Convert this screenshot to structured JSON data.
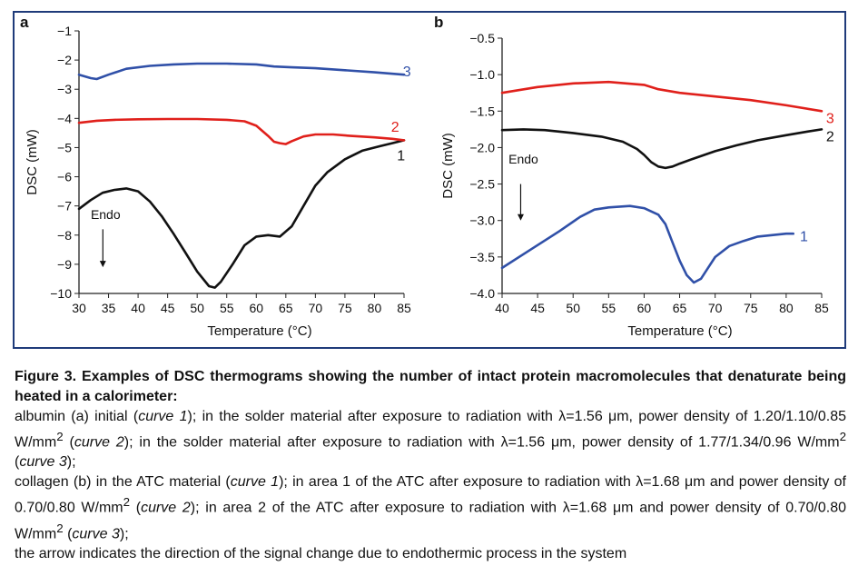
{
  "colors": {
    "frame": "#1f3b7a",
    "black": "#111111",
    "red": "#e0201b",
    "blue": "#3050a8"
  },
  "chart_data": [
    {
      "type": "line",
      "panel_label": "a",
      "xlabel": "Temperature (°C)",
      "ylabel": "DSC (mW)",
      "xlim": [
        30,
        85
      ],
      "ylim": [
        -10,
        -1
      ],
      "xticks": [
        30,
        35,
        40,
        45,
        50,
        55,
        60,
        65,
        70,
        75,
        80,
        85
      ],
      "xtick_labels": [
        "30",
        "35",
        "40",
        "45",
        "50",
        "55",
        "60",
        "65",
        "70",
        "75",
        "80",
        "85"
      ],
      "yticks": [
        -1,
        -2,
        -3,
        -4,
        -5,
        -6,
        -7,
        -8,
        -9,
        -10
      ],
      "ytick_labels": [
        "−1",
        "−2",
        "−3",
        "−4",
        "−5",
        "−6",
        "−7",
        "−8",
        "−9",
        "−10"
      ],
      "annotation": {
        "text": "Endo",
        "x": 34.5,
        "y": -7.45,
        "arrow_from": -7.8,
        "arrow_to": -9.1
      },
      "series": [
        {
          "name": "1",
          "color": "black",
          "x": [
            30,
            32,
            34,
            36,
            38,
            40,
            42,
            44,
            46,
            48,
            50,
            52,
            53,
            54,
            56,
            58,
            60,
            62,
            64,
            66,
            68,
            70,
            72,
            75,
            78,
            81,
            83,
            85
          ],
          "y": [
            -7.1,
            -6.8,
            -6.55,
            -6.45,
            -6.4,
            -6.5,
            -6.85,
            -7.35,
            -7.95,
            -8.6,
            -9.25,
            -9.75,
            -9.8,
            -9.6,
            -9.0,
            -8.35,
            -8.05,
            -8.0,
            -8.05,
            -7.7,
            -7.0,
            -6.3,
            -5.85,
            -5.4,
            -5.1,
            -4.95,
            -4.85,
            -4.75
          ],
          "label_pos": {
            "x": 84.5,
            "y": -5.28
          }
        },
        {
          "name": "2",
          "color": "red",
          "x": [
            30,
            33,
            36,
            40,
            45,
            50,
            55,
            58,
            60,
            62,
            63,
            64,
            65,
            66,
            68,
            70,
            73,
            76,
            80,
            83,
            85
          ],
          "y": [
            -4.15,
            -4.08,
            -4.05,
            -4.03,
            -4.02,
            -4.02,
            -4.05,
            -4.1,
            -4.25,
            -4.6,
            -4.8,
            -4.85,
            -4.88,
            -4.78,
            -4.62,
            -4.55,
            -4.55,
            -4.6,
            -4.65,
            -4.7,
            -4.75
          ],
          "label_pos": {
            "x": 83.5,
            "y": -4.3
          }
        },
        {
          "name": "3",
          "color": "blue",
          "x": [
            30,
            32,
            33,
            35,
            38,
            42,
            46,
            50,
            55,
            60,
            63,
            66,
            70,
            75,
            80,
            85
          ],
          "y": [
            -2.5,
            -2.62,
            -2.65,
            -2.5,
            -2.3,
            -2.2,
            -2.15,
            -2.12,
            -2.12,
            -2.15,
            -2.22,
            -2.25,
            -2.28,
            -2.35,
            -2.42,
            -2.5
          ],
          "label_pos": {
            "x": 85.5,
            "y": -2.4
          }
        }
      ]
    },
    {
      "type": "line",
      "panel_label": "b",
      "xlabel": "Temperature (°C)",
      "ylabel": "DSC (mW)",
      "xlim": [
        40,
        85
      ],
      "ylim": [
        -4.0,
        -0.5
      ],
      "xticks": [
        40,
        45,
        50,
        55,
        60,
        65,
        70,
        75,
        80,
        85
      ],
      "xtick_labels": [
        "40",
        "45",
        "50",
        "55",
        "60",
        "65",
        "70",
        "75",
        "80",
        "85"
      ],
      "yticks": [
        -0.5,
        -1.0,
        -1.5,
        -2.0,
        -2.5,
        -3.0,
        -3.5,
        -4.0
      ],
      "ytick_labels": [
        "−0.5",
        "−1.0",
        "−1.5",
        "−2.0",
        "−2.5",
        "−3.0",
        "−3.5",
        "−4.0"
      ],
      "annotation": {
        "text": "Endo",
        "x": 43,
        "y": -2.22,
        "arrow_from": -2.5,
        "arrow_to": -3.0
      },
      "series": [
        {
          "name": "1",
          "color": "blue",
          "x": [
            40,
            44,
            48,
            51,
            53,
            55,
            58,
            60,
            62,
            63,
            64,
            65,
            66,
            67,
            68,
            69,
            70,
            72,
            74,
            76,
            78,
            80,
            81
          ],
          "y": [
            -3.65,
            -3.4,
            -3.15,
            -2.95,
            -2.85,
            -2.82,
            -2.8,
            -2.83,
            -2.92,
            -3.05,
            -3.3,
            -3.55,
            -3.75,
            -3.85,
            -3.8,
            -3.65,
            -3.5,
            -3.35,
            -3.28,
            -3.22,
            -3.2,
            -3.18,
            -3.18
          ],
          "label_pos": {
            "x": 82.5,
            "y": -3.22
          }
        },
        {
          "name": "2",
          "color": "black",
          "x": [
            40,
            43,
            46,
            50,
            54,
            57,
            59,
            60,
            61,
            62,
            63,
            64,
            65,
            67,
            70,
            73,
            76,
            80,
            83,
            85
          ],
          "y": [
            -1.76,
            -1.75,
            -1.76,
            -1.8,
            -1.85,
            -1.92,
            -2.02,
            -2.1,
            -2.2,
            -2.26,
            -2.28,
            -2.26,
            -2.22,
            -2.15,
            -2.05,
            -1.97,
            -1.9,
            -1.83,
            -1.78,
            -1.75
          ],
          "label_pos": {
            "x": 86.2,
            "y": -1.85
          }
        },
        {
          "name": "3",
          "color": "red",
          "x": [
            40,
            45,
            50,
            55,
            60,
            62,
            65,
            70,
            75,
            80,
            85
          ],
          "y": [
            -1.25,
            -1.17,
            -1.12,
            -1.1,
            -1.14,
            -1.2,
            -1.25,
            -1.3,
            -1.35,
            -1.42,
            -1.5
          ],
          "label_pos": {
            "x": 86.2,
            "y": -1.6
          }
        }
      ]
    }
  ],
  "caption": {
    "title": "Figure 3. Examples of DSC thermograms showing the number of intact protein macromolecules that denaturate being heated in a calorimeter:",
    "line_a_1": "albumin (a) initial (",
    "line_a_curve1": "curve 1",
    "line_a_2": "); in the solder material after exposure to radiation with λ=1.56 μm, power density of 1.20/1.10/0.85 W/mm",
    "line_a_sup1": "2",
    "line_a_3": " (",
    "line_a_curve2": "curve 2",
    "line_a_4": "); in the solder material after exposure to radiation with λ=1.56 μm, power density of 1.77/1.34/0.96 W/mm",
    "line_a_sup2": "2",
    "line_a_5": " (",
    "line_a_curve3": "curve 3",
    "line_a_6": ");",
    "line_b_1": "collagen (b) in the ATC material (",
    "line_b_curve1": "curve 1",
    "line_b_2": "); in area 1 of the ATC after exposure to radiation with λ=1.68 μm and power density of 0.70/0.80 W/mm",
    "line_b_sup1": "2",
    "line_b_3": " (",
    "line_b_curve2": "curve 2",
    "line_b_4": "); in area 2 of the ATC after exposure to radiation with λ=1.68 μm and power density of 0.70/0.80 W/mm",
    "line_b_sup2": "2",
    "line_b_5": " (",
    "line_b_curve3": "curve 3",
    "line_b_6": ");",
    "line_c": "the arrow indicates the direction of the signal change due to endothermic process in the system"
  }
}
